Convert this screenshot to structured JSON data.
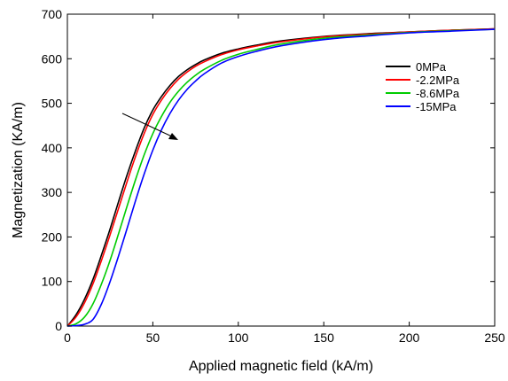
{
  "chart_data": {
    "type": "line",
    "title": "",
    "xlabel": "Applied magnetic field (kA/m)",
    "ylabel": "Magnetization (KA/m)",
    "xlim": [
      0,
      250
    ],
    "ylim": [
      0,
      700
    ],
    "xticks": [
      0,
      50,
      100,
      150,
      200,
      250
    ],
    "yticks": [
      0,
      100,
      200,
      300,
      400,
      500,
      600,
      700
    ],
    "grid": false,
    "legend_position": "upper-right",
    "annotation": "arrow indicating increasing compressive stress shifts curves to the right",
    "series": [
      {
        "name": "0MPa",
        "color": "#000000",
        "x": [
          0,
          5,
          10,
          15,
          20,
          25,
          30,
          35,
          40,
          45,
          50,
          55,
          60,
          65,
          70,
          75,
          80,
          90,
          100,
          110,
          125,
          150,
          175,
          200,
          225,
          250
        ],
        "y": [
          0,
          25,
          60,
          105,
          160,
          218,
          280,
          340,
          395,
          445,
          485,
          515,
          540,
          560,
          575,
          587,
          597,
          612,
          622,
          630,
          640,
          650,
          656,
          660,
          664,
          667
        ]
      },
      {
        "name": "-2.2MPa",
        "color": "#ff0000",
        "x": [
          0,
          5,
          10,
          15,
          20,
          25,
          30,
          35,
          40,
          45,
          50,
          55,
          60,
          65,
          70,
          75,
          80,
          90,
          100,
          110,
          125,
          150,
          175,
          200,
          225,
          250
        ],
        "y": [
          0,
          20,
          52,
          95,
          148,
          205,
          265,
          325,
          382,
          433,
          475,
          507,
          533,
          554,
          570,
          583,
          593,
          609,
          620,
          628,
          638,
          649,
          655,
          660,
          664,
          667
        ]
      },
      {
        "name": "-8.6MPa",
        "color": "#00cc00",
        "x": [
          0,
          5,
          10,
          15,
          20,
          25,
          30,
          35,
          40,
          45,
          50,
          55,
          60,
          65,
          70,
          75,
          80,
          90,
          100,
          110,
          125,
          150,
          175,
          200,
          225,
          250
        ],
        "y": [
          0,
          5,
          20,
          50,
          95,
          148,
          208,
          270,
          330,
          385,
          432,
          470,
          502,
          527,
          547,
          563,
          576,
          596,
          610,
          620,
          633,
          646,
          653,
          659,
          663,
          666
        ]
      },
      {
        "name": "-15MPa",
        "color": "#0000ff",
        "x": [
          0,
          5,
          10,
          15,
          20,
          25,
          30,
          35,
          40,
          45,
          50,
          55,
          60,
          65,
          70,
          75,
          80,
          90,
          100,
          110,
          125,
          150,
          175,
          200,
          225,
          250
        ],
        "y": [
          0,
          1,
          4,
          15,
          50,
          100,
          158,
          220,
          283,
          342,
          395,
          440,
          477,
          507,
          531,
          550,
          566,
          590,
          605,
          616,
          629,
          643,
          651,
          658,
          662,
          666
        ]
      }
    ]
  }
}
